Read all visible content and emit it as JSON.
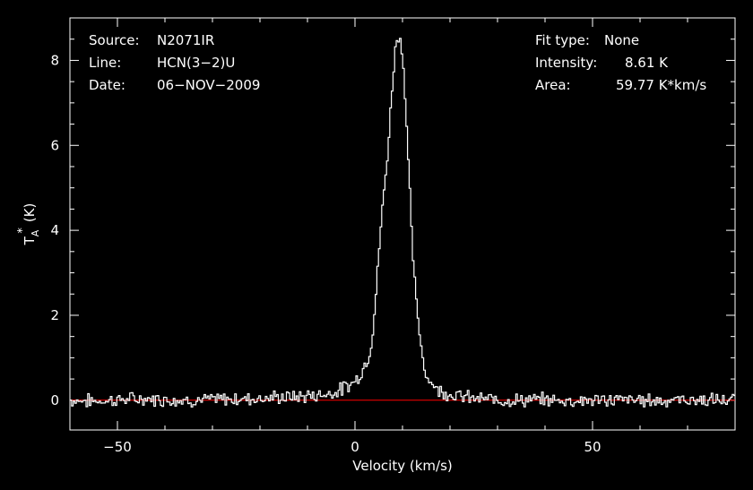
{
  "annotations": {
    "left": [
      {
        "label": "Source:",
        "value": "N2071IR"
      },
      {
        "label": "Line:",
        "value": "HCN(3−2)U"
      },
      {
        "label": "Date:",
        "value": "06−NOV−2009"
      }
    ],
    "right": [
      {
        "label": "Fit type:",
        "value": "None"
      },
      {
        "label": "Intensity:",
        "value": "8.61 K"
      },
      {
        "label": "Area:",
        "value": "59.77 K*km/s"
      }
    ]
  },
  "chart_data": {
    "type": "line",
    "title": "",
    "xlabel": "Velocity (km/s)",
    "ylabel_main": "T",
    "ylabel_sub": "A",
    "ylabel_sup": "*",
    "ylabel_unit": "(K)",
    "xlim": [
      -60,
      80
    ],
    "ylim": [
      -0.7,
      9.0
    ],
    "xticks": [
      -50,
      0,
      50
    ],
    "xtick_labels": [
      "−50",
      "0",
      "50"
    ],
    "yticks": [
      0,
      2,
      4,
      6,
      8
    ],
    "ytick_labels": [
      "0",
      "2",
      "4",
      "6",
      "8"
    ],
    "grid": false,
    "colors": {
      "background": "#000000",
      "axes": "#ffffff",
      "spectrum": "#ffffff",
      "baseline": "#ff0000"
    },
    "baseline": {
      "y": 0,
      "color": "#ff0000"
    },
    "series": [
      {
        "x": [
          -60,
          -55,
          -50,
          -45,
          -40,
          -35,
          -30,
          -25,
          -20,
          -15,
          -12,
          -10,
          -8,
          -6,
          -4,
          -2,
          0,
          1,
          2,
          3,
          3.5,
          4,
          4.5,
          5,
          5.5,
          6,
          6.5,
          7,
          7.5,
          8,
          8.5,
          9,
          9.5,
          10,
          10.5,
          11,
          11.5,
          12,
          12.5,
          13,
          13.5,
          14,
          14.5,
          15,
          16,
          17,
          18,
          20,
          22,
          24,
          26,
          30,
          35,
          40,
          45,
          50,
          55,
          60,
          65,
          70,
          75,
          80
        ],
        "y": [
          0.0,
          -0.02,
          0.01,
          0.03,
          0.02,
          0.0,
          0.01,
          0.03,
          0.05,
          0.07,
          0.08,
          0.1,
          0.12,
          0.15,
          0.2,
          0.3,
          0.45,
          0.6,
          0.8,
          1.1,
          1.4,
          1.9,
          2.6,
          3.4,
          4.2,
          4.8,
          5.3,
          6.0,
          6.8,
          7.6,
          8.3,
          8.61,
          8.5,
          8.2,
          7.3,
          6.2,
          5.0,
          3.8,
          2.9,
          2.2,
          1.7,
          1.2,
          0.9,
          0.6,
          0.42,
          0.3,
          0.22,
          0.15,
          0.1,
          0.06,
          0.03,
          0.01,
          0.0,
          0.01,
          -0.01,
          0.0,
          0.01,
          0.0,
          0.0,
          0.01,
          0.0,
          0.0
        ]
      }
    ]
  }
}
